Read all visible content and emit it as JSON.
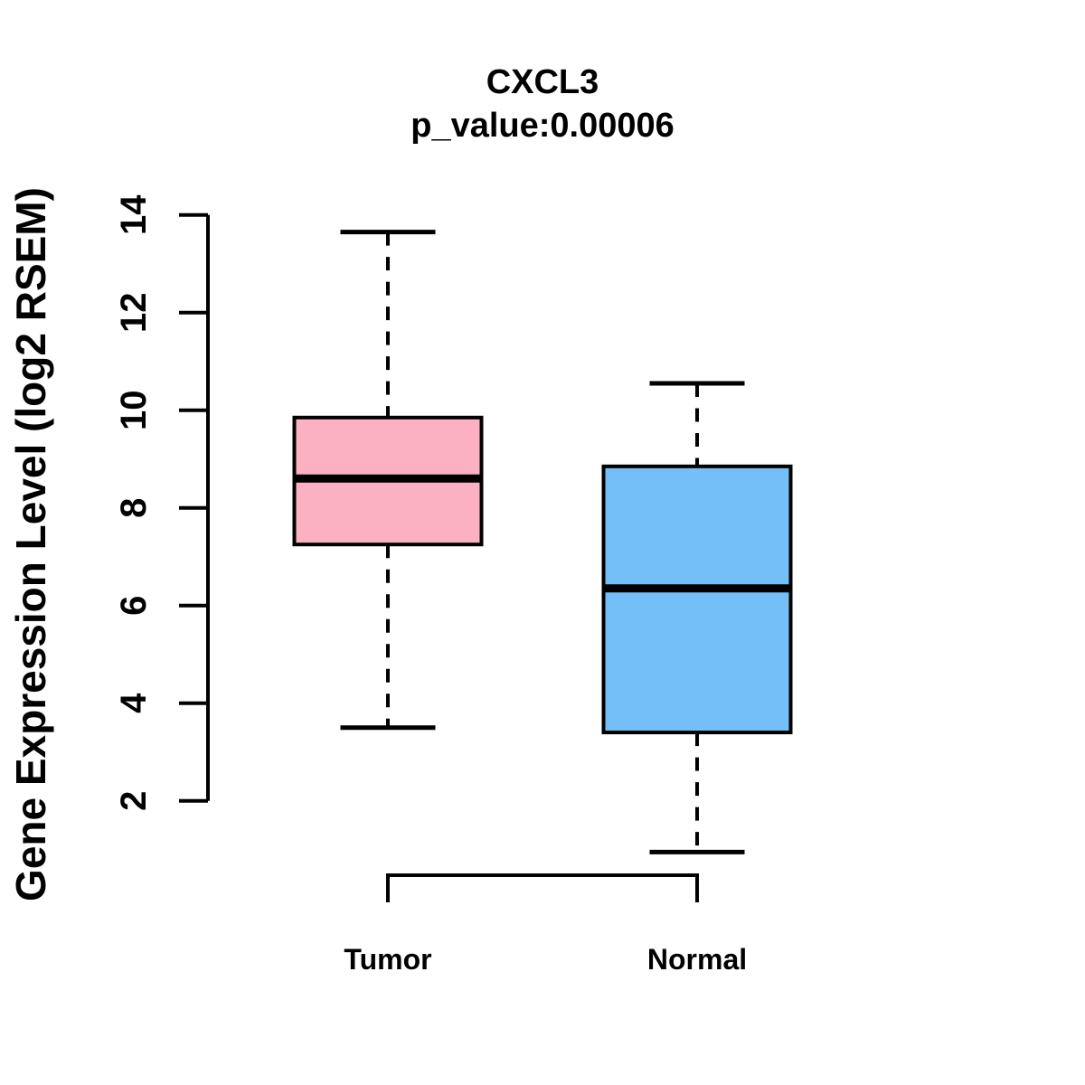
{
  "title": {
    "line1": "CXCL3",
    "line2": "p_value:0.00006"
  },
  "ylabel": "Gene Expression Level (log2 RSEM)",
  "colors": {
    "tumor_fill": "#FBB1C1",
    "normal_fill": "#74BFF7",
    "line": "#000000",
    "background": "#FFFFFF"
  },
  "chart_data": {
    "type": "boxplot",
    "title": "CXCL3",
    "subtitle": "p_value:0.00006",
    "ylabel": "Gene Expression Level (log2 RSEM)",
    "xlabel": "",
    "categories": [
      "Tumor",
      "Normal"
    ],
    "yticks": [
      2,
      4,
      6,
      8,
      10,
      12,
      14
    ],
    "ylim": [
      0.5,
      14.3
    ],
    "grid": false,
    "legend": "none",
    "whisker_style": "dashed",
    "series": [
      {
        "name": "Tumor",
        "fill": "#FBB1C1",
        "whisker_low": 3.5,
        "q1": 7.25,
        "median": 8.6,
        "q3": 9.85,
        "whisker_high": 13.65
      },
      {
        "name": "Normal",
        "fill": "#74BFF7",
        "whisker_low": 0.95,
        "q1": 3.4,
        "median": 6.35,
        "q3": 8.85,
        "whisker_high": 10.55
      }
    ],
    "comparison_bracket": {
      "from": "Tumor",
      "to": "Normal"
    }
  }
}
